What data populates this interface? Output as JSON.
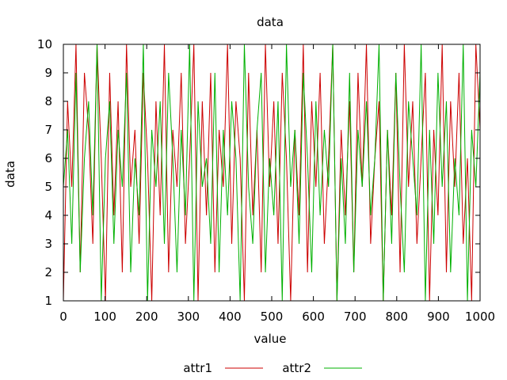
{
  "chart_data": {
    "type": "line",
    "title": "data",
    "xlabel": "value",
    "ylabel": "data",
    "xlim": [
      0,
      1000
    ],
    "ylim": [
      1,
      10
    ],
    "xticks": [
      0,
      100,
      200,
      300,
      400,
      500,
      600,
      700,
      800,
      900,
      1000
    ],
    "yticks": [
      1,
      2,
      3,
      4,
      5,
      6,
      7,
      8,
      9,
      10
    ],
    "grid": false,
    "legend_position": "bottom-center",
    "series": [
      {
        "name": "attr1",
        "color": "#cc0000",
        "values": [
          1,
          8,
          5,
          10,
          2,
          9,
          7,
          3,
          10,
          6,
          1,
          9,
          4,
          8,
          2,
          10,
          5,
          7,
          3,
          9,
          6,
          1,
          8,
          4,
          10,
          2,
          7,
          5,
          9,
          3,
          6,
          10,
          1,
          8,
          4,
          9,
          2,
          7,
          5,
          10,
          3,
          8,
          6,
          1,
          9,
          4,
          7,
          2,
          10,
          5,
          8,
          3,
          9,
          6,
          1,
          7,
          4,
          10,
          2,
          8,
          5,
          9,
          3,
          6,
          10,
          1,
          7,
          4,
          8,
          2,
          9,
          5,
          10,
          3,
          6,
          8,
          1,
          7,
          4,
          9,
          2,
          10,
          5,
          8,
          3,
          6,
          9,
          1,
          7,
          4,
          10,
          2,
          8,
          5,
          9,
          3,
          6,
          1,
          10,
          7
        ]
      },
      {
        "name": "attr2",
        "color": "#00b000",
        "values": [
          5,
          7,
          3,
          9,
          2,
          6,
          8,
          4,
          10,
          1,
          6,
          8,
          3,
          7,
          5,
          9,
          2,
          6,
          4,
          10,
          1,
          7,
          5,
          8,
          3,
          9,
          6,
          2,
          7,
          4,
          10,
          1,
          8,
          5,
          6,
          3,
          9,
          2,
          7,
          4,
          8,
          6,
          1,
          10,
          5,
          3,
          7,
          9,
          2,
          6,
          4,
          8,
          1,
          10,
          5,
          7,
          3,
          9,
          6,
          2,
          8,
          4,
          7,
          5,
          10,
          1,
          6,
          3,
          9,
          2,
          7,
          5,
          8,
          4,
          6,
          10,
          1,
          7,
          3,
          9,
          5,
          2,
          8,
          6,
          4,
          10,
          1,
          7,
          3,
          9,
          5,
          8,
          2,
          6,
          4,
          10,
          1,
          7,
          5,
          9
        ]
      }
    ]
  }
}
